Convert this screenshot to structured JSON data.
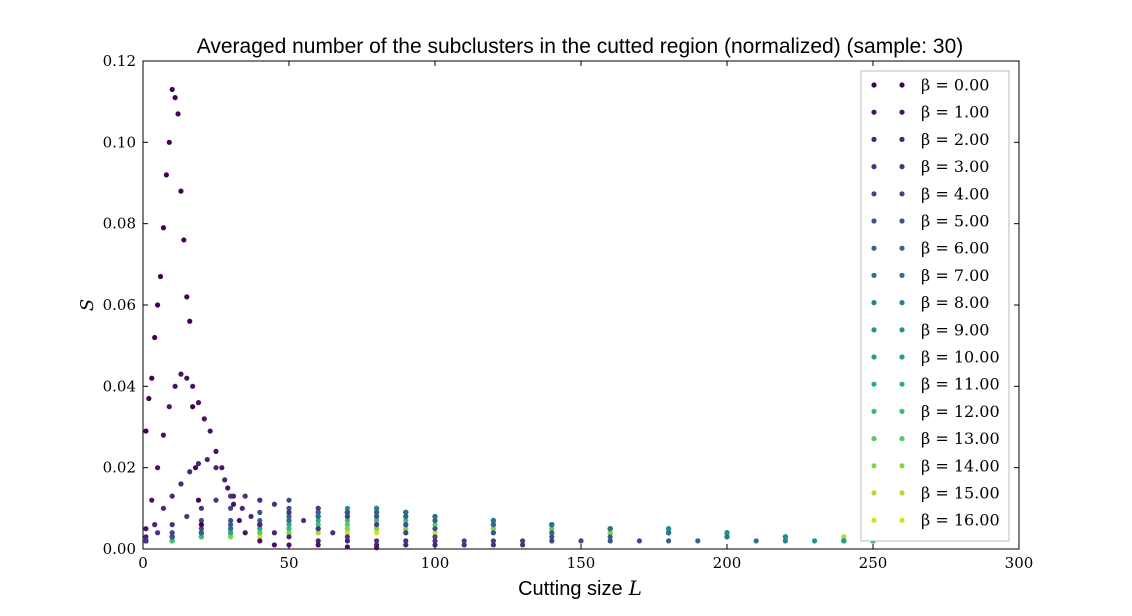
{
  "chart_data": {
    "type": "scatter",
    "title": "Averaged number of the subclusters in the cutted region (normalized) (sample: 30)",
    "xlabel": "Cutting size",
    "xlabel_var": "L",
    "ylabel": "S",
    "xlim": [
      0,
      300
    ],
    "ylim": [
      0,
      0.12
    ],
    "x_ticks": [
      "0",
      "50",
      "100",
      "150",
      "200",
      "250",
      "300"
    ],
    "y_ticks": [
      "0.00",
      "0.02",
      "0.04",
      "0.06",
      "0.08",
      "0.10",
      "0.12"
    ],
    "grid": false,
    "legend_position": "top-right",
    "series": [
      {
        "name": "β = 0.00",
        "color": "#440154",
        "x": [
          1,
          2,
          3,
          4,
          5,
          6,
          7,
          8,
          9,
          10,
          11,
          12,
          13,
          14,
          15,
          16,
          17,
          18,
          19,
          20
        ],
        "y": [
          0.029,
          0.037,
          0.042,
          0.052,
          0.06,
          0.067,
          0.079,
          0.092,
          0.1,
          0.113,
          0.111,
          0.107,
          0.088,
          0.076,
          0.062,
          0.056,
          0.035,
          0.02,
          0.012,
          0.006
        ]
      },
      {
        "name": "β = 1.00",
        "color": "#471365",
        "x": [
          1,
          3,
          5,
          7,
          9,
          11,
          13,
          15,
          17,
          19,
          21,
          23,
          25,
          27,
          29,
          31,
          33,
          35,
          40,
          45,
          50,
          60,
          70,
          80
        ],
        "y": [
          0.005,
          0.012,
          0.02,
          0.028,
          0.035,
          0.04,
          0.043,
          0.042,
          0.04,
          0.036,
          0.032,
          0.029,
          0.024,
          0.02,
          0.015,
          0.011,
          0.007,
          0.004,
          0.002,
          0.001,
          0.001,
          0.001,
          0.0005,
          0.0003
        ]
      },
      {
        "name": "β = 2.00",
        "color": "#482576",
        "x": [
          1,
          4,
          7,
          10,
          13,
          16,
          19,
          22,
          25,
          28,
          31,
          34,
          37,
          40,
          45,
          50,
          60,
          70,
          80,
          90,
          100
        ],
        "y": [
          0.003,
          0.006,
          0.01,
          0.013,
          0.016,
          0.019,
          0.021,
          0.022,
          0.02,
          0.017,
          0.013,
          0.01,
          0.008,
          0.006,
          0.004,
          0.003,
          0.002,
          0.002,
          0.001,
          0.001,
          0.001
        ]
      },
      {
        "name": "β = 3.00",
        "color": "#463480",
        "x": [
          1,
          5,
          10,
          15,
          20,
          25,
          30,
          35,
          40,
          45,
          50,
          55,
          60,
          65,
          70,
          80,
          90,
          100,
          110,
          120,
          130
        ],
        "y": [
          0.002,
          0.004,
          0.006,
          0.008,
          0.01,
          0.012,
          0.013,
          0.013,
          0.012,
          0.011,
          0.009,
          0.007,
          0.005,
          0.004,
          0.003,
          0.002,
          0.002,
          0.002,
          0.001,
          0.001,
          0.001
        ]
      },
      {
        "name": "β = 4.00",
        "color": "#414487",
        "x": [
          1,
          10,
          20,
          30,
          40,
          50,
          60,
          70,
          80,
          90,
          100,
          110,
          120,
          130,
          140,
          150
        ],
        "y": [
          0.002,
          0.004,
          0.007,
          0.01,
          0.012,
          0.012,
          0.01,
          0.008,
          0.006,
          0.004,
          0.003,
          0.002,
          0.002,
          0.002,
          0.002,
          0.002
        ]
      },
      {
        "name": "β = 5.00",
        "color": "#3b528b",
        "x": [
          1,
          10,
          20,
          30,
          40,
          50,
          60,
          70,
          80,
          90,
          100,
          120,
          140,
          160,
          170
        ],
        "y": [
          0.002,
          0.003,
          0.005,
          0.007,
          0.009,
          0.01,
          0.01,
          0.009,
          0.008,
          0.006,
          0.005,
          0.004,
          0.003,
          0.002,
          0.002
        ]
      },
      {
        "name": "β = 6.00",
        "color": "#33638d",
        "x": [
          1,
          10,
          20,
          30,
          40,
          50,
          60,
          70,
          80,
          90,
          100,
          120,
          140,
          160,
          180,
          190
        ],
        "y": [
          0.002,
          0.003,
          0.004,
          0.006,
          0.007,
          0.008,
          0.009,
          0.009,
          0.009,
          0.008,
          0.007,
          0.006,
          0.004,
          0.003,
          0.002,
          0.002
        ]
      },
      {
        "name": "β = 7.00",
        "color": "#2c728e",
        "x": [
          1,
          10,
          20,
          30,
          40,
          50,
          60,
          70,
          80,
          90,
          100,
          120,
          140,
          160,
          180,
          200,
          210
        ],
        "y": [
          0.002,
          0.003,
          0.004,
          0.005,
          0.006,
          0.007,
          0.008,
          0.009,
          0.009,
          0.009,
          0.008,
          0.007,
          0.006,
          0.005,
          0.004,
          0.003,
          0.002
        ]
      },
      {
        "name": "β = 8.00",
        "color": "#26828e",
        "x": [
          1,
          10,
          20,
          30,
          40,
          50,
          60,
          70,
          80,
          90,
          100,
          120,
          140,
          160,
          180,
          200,
          220
        ],
        "y": [
          0.002,
          0.003,
          0.004,
          0.005,
          0.006,
          0.007,
          0.008,
          0.009,
          0.01,
          0.009,
          0.008,
          0.007,
          0.006,
          0.005,
          0.004,
          0.003,
          0.002
        ]
      },
      {
        "name": "β = 9.00",
        "color": "#21918c",
        "x": [
          1,
          10,
          20,
          30,
          40,
          50,
          60,
          70,
          80,
          90,
          100,
          120,
          140,
          160,
          180,
          200,
          220,
          230
        ],
        "y": [
          0.002,
          0.003,
          0.004,
          0.005,
          0.006,
          0.007,
          0.009,
          0.01,
          0.01,
          0.009,
          0.008,
          0.007,
          0.006,
          0.005,
          0.005,
          0.004,
          0.003,
          0.002
        ]
      },
      {
        "name": "β = 10.00",
        "color": "#1fa088",
        "x": [
          1,
          10,
          20,
          30,
          40,
          50,
          60,
          70,
          80,
          90,
          100,
          120,
          140,
          160,
          180,
          200,
          220,
          240
        ],
        "y": [
          0.002,
          0.003,
          0.004,
          0.005,
          0.006,
          0.007,
          0.008,
          0.009,
          0.009,
          0.009,
          0.008,
          0.007,
          0.006,
          0.005,
          0.005,
          0.004,
          0.003,
          0.002
        ]
      },
      {
        "name": "β = 11.00",
        "color": "#28ae80",
        "x": [
          1,
          10,
          20,
          30,
          40,
          50,
          60,
          70,
          80,
          90,
          100,
          120,
          140,
          160,
          180,
          200,
          220,
          240,
          250
        ],
        "y": [
          0.002,
          0.003,
          0.004,
          0.004,
          0.005,
          0.006,
          0.007,
          0.008,
          0.008,
          0.008,
          0.008,
          0.007,
          0.006,
          0.005,
          0.005,
          0.004,
          0.003,
          0.002,
          0.002
        ]
      },
      {
        "name": "β = 12.00",
        "color": "#3fbc73",
        "x": [
          1,
          10,
          20,
          30,
          40,
          50,
          60,
          70,
          80,
          90,
          100,
          120,
          140,
          160,
          180,
          200,
          220,
          240,
          250
        ],
        "y": [
          0.002,
          0.002,
          0.003,
          0.004,
          0.005,
          0.005,
          0.006,
          0.007,
          0.007,
          0.007,
          0.007,
          0.006,
          0.006,
          0.005,
          0.004,
          0.004,
          0.003,
          0.002,
          0.002
        ]
      },
      {
        "name": "β = 13.00",
        "color": "#5ec962",
        "x": [
          1,
          10,
          20,
          30,
          40,
          50,
          60,
          70,
          80,
          90,
          100,
          120,
          140,
          160,
          180,
          200,
          220,
          240,
          250
        ],
        "y": [
          0.002,
          0.002,
          0.003,
          0.004,
          0.004,
          0.005,
          0.005,
          0.006,
          0.006,
          0.006,
          0.006,
          0.006,
          0.005,
          0.005,
          0.004,
          0.004,
          0.003,
          0.002,
          0.002
        ]
      },
      {
        "name": "β = 14.00",
        "color": "#84d44b",
        "x": [
          1,
          10,
          20,
          30,
          40,
          50,
          60,
          70,
          80,
          90,
          100,
          120,
          140,
          160,
          180,
          200,
          220,
          240,
          250
        ],
        "y": [
          0.002,
          0.002,
          0.003,
          0.003,
          0.004,
          0.004,
          0.005,
          0.005,
          0.005,
          0.005,
          0.005,
          0.005,
          0.005,
          0.004,
          0.004,
          0.003,
          0.003,
          0.002,
          0.002
        ]
      },
      {
        "name": "β = 15.00",
        "color": "#addc30",
        "x": [
          1,
          10,
          20,
          30,
          40,
          50,
          60,
          70,
          80,
          90,
          100,
          120,
          140,
          160,
          180,
          200,
          220,
          240,
          250
        ],
        "y": [
          0.002,
          0.002,
          0.003,
          0.003,
          0.004,
          0.004,
          0.004,
          0.005,
          0.005,
          0.005,
          0.005,
          0.005,
          0.004,
          0.004,
          0.004,
          0.004,
          0.003,
          0.003,
          0.002
        ]
      },
      {
        "name": "β = 16.00",
        "color": "#d8e219",
        "x": [
          1,
          10,
          20,
          30,
          40,
          50,
          60,
          70,
          80,
          90,
          100,
          120,
          140,
          160,
          180,
          200,
          220,
          240,
          250
        ],
        "y": [
          0.002,
          0.002,
          0.003,
          0.003,
          0.003,
          0.004,
          0.004,
          0.004,
          0.004,
          0.004,
          0.004,
          0.004,
          0.004,
          0.004,
          0.004,
          0.004,
          0.003,
          0.003,
          0.002
        ]
      }
    ]
  }
}
